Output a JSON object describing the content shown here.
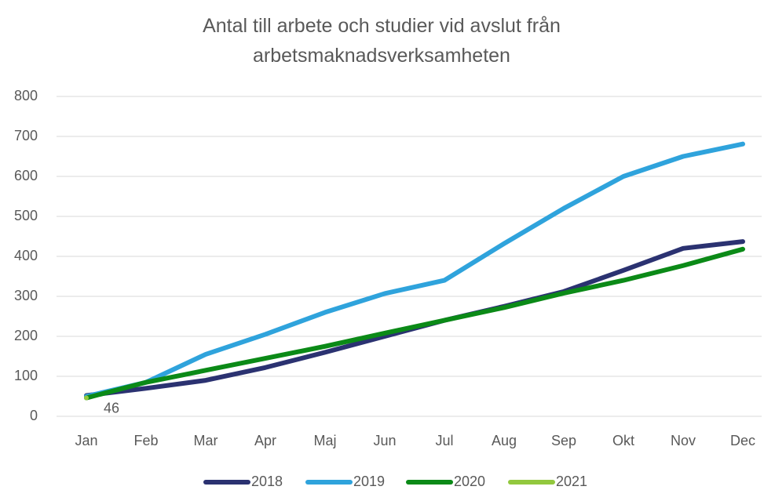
{
  "chart_data": {
    "type": "line",
    "title": "Antal till arbete och studier vid avslut från arbetsmaknadsverksamheten",
    "categories": [
      "Jan",
      "Feb",
      "Mar",
      "Apr",
      "Maj",
      "Jun",
      "Jul",
      "Aug",
      "Sep",
      "Okt",
      "Nov",
      "Dec"
    ],
    "series": [
      {
        "name": "2018",
        "color": "#2b3271",
        "values": [
          52,
          70,
          90,
          122,
          160,
          200,
          240,
          275,
          312,
          365,
          420,
          437
        ]
      },
      {
        "name": "2019",
        "color": "#2fa3dc",
        "values": [
          50,
          85,
          155,
          205,
          260,
          307,
          340,
          432,
          520,
          600,
          650,
          681
        ]
      },
      {
        "name": "2020",
        "color": "#0b8a17",
        "values": [
          46,
          85,
          115,
          145,
          175,
          208,
          240,
          272,
          308,
          340,
          377,
          418
        ]
      },
      {
        "name": "2021",
        "color": "#92c83e",
        "values": [
          46,
          null,
          null,
          null,
          null,
          null,
          null,
          null,
          null,
          null,
          null,
          null
        ],
        "show_labels": true
      }
    ],
    "ylim": [
      0,
      800
    ],
    "yticks": [
      0,
      100,
      200,
      300,
      400,
      500,
      600,
      700,
      800
    ],
    "grid": true,
    "legend": "bottom"
  }
}
